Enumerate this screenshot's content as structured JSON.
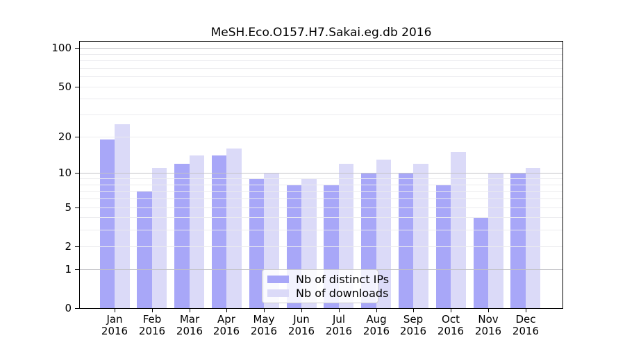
{
  "chart_data": {
    "type": "bar",
    "title": "MeSH.Eco.O157.H7.Sakai.eg.db 2016",
    "categories": [
      "Jan",
      "Feb",
      "Mar",
      "Apr",
      "May",
      "Jun",
      "Jul",
      "Aug",
      "Sep",
      "Oct",
      "Nov",
      "Dec"
    ],
    "category_year": "2016",
    "series": [
      {
        "name": "Nb of distinct IPs",
        "color": "#a8a7f8",
        "values": [
          19,
          7,
          12,
          14,
          9,
          8,
          8,
          10,
          10,
          8,
          4,
          10
        ]
      },
      {
        "name": "Nb of downloads",
        "color": "#dbdaf8",
        "values": [
          25,
          11,
          14,
          16,
          10,
          9,
          12,
          13,
          12,
          15,
          10,
          11
        ]
      }
    ],
    "yscale": "log1p",
    "ylim": [
      0,
      112
    ],
    "yticks": [
      0,
      1,
      2,
      5,
      10,
      20,
      50,
      100
    ],
    "grid_minor": [
      2,
      3,
      4,
      5,
      6,
      7,
      8,
      9,
      20,
      30,
      40,
      50,
      60,
      70,
      80,
      90
    ],
    "grid_major": [
      1,
      10,
      100
    ],
    "legend_position": "bottom-center",
    "grid_on": true
  },
  "colors": {
    "grid_minor": "#ebebee",
    "grid_major": "#c2c2c6",
    "axis": "#000000",
    "legend_border": "#cccccc"
  }
}
